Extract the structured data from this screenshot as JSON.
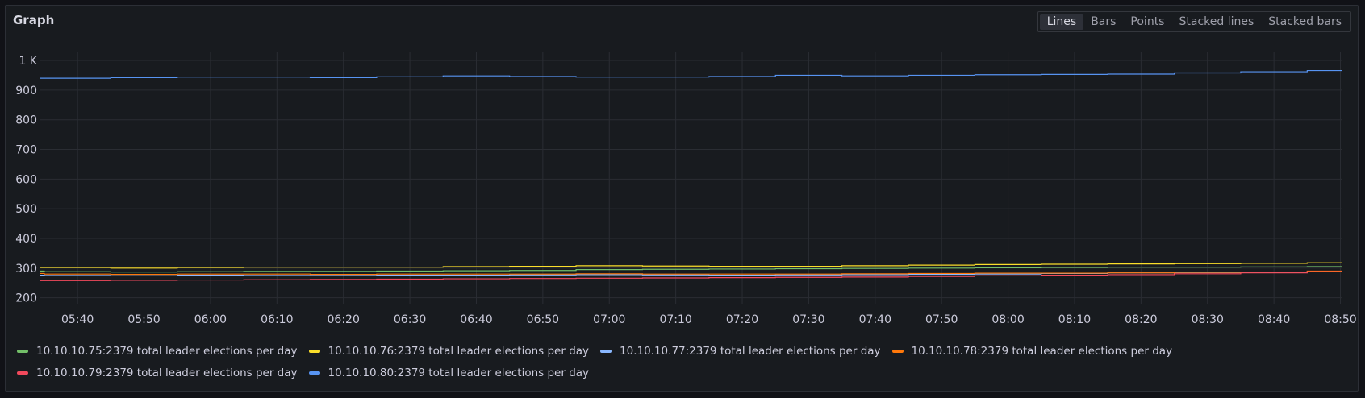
{
  "panel": {
    "title": "Graph",
    "modes": [
      "Lines",
      "Bars",
      "Points",
      "Stacked lines",
      "Stacked bars"
    ],
    "active_mode": "Lines"
  },
  "chart_data": {
    "type": "line",
    "title": "Graph",
    "xlabel": "",
    "ylabel": "",
    "x_ticks": [
      "05:40",
      "05:50",
      "06:00",
      "06:10",
      "06:20",
      "06:30",
      "06:40",
      "06:50",
      "07:00",
      "07:10",
      "07:20",
      "07:30",
      "07:40",
      "07:50",
      "08:00",
      "08:10",
      "08:20",
      "08:30",
      "08:40",
      "08:50"
    ],
    "y_ticks": [
      "200",
      "300",
      "400",
      "500",
      "600",
      "700",
      "800",
      "900",
      "1 K"
    ],
    "ylim": [
      180,
      1030
    ],
    "grid": true,
    "legend_position": "bottom",
    "x": [
      "05:35",
      "05:45",
      "05:55",
      "06:05",
      "06:15",
      "06:25",
      "06:35",
      "06:45",
      "06:55",
      "07:05",
      "07:15",
      "07:25",
      "07:35",
      "07:45",
      "07:55",
      "08:05",
      "08:15",
      "08:25",
      "08:35",
      "08:45",
      "08:50"
    ],
    "series": [
      {
        "name": "10.10.10.75:2379 total leader elections per day",
        "color": "#73bf69",
        "values": [
          290,
          288,
          287,
          288,
          289,
          289,
          290,
          291,
          292,
          295,
          296,
          297,
          298,
          299,
          300,
          301,
          302,
          303,
          303,
          304,
          305
        ]
      },
      {
        "name": "10.10.10.76:2379 total leader elections per day",
        "color": "#fade2a",
        "values": [
          302,
          302,
          300,
          302,
          303,
          303,
          303,
          305,
          306,
          308,
          307,
          306,
          306,
          308,
          310,
          312,
          313,
          314,
          315,
          316,
          318
        ]
      },
      {
        "name": "10.10.10.77:2379 total leader elections per day",
        "color": "#8ab8ff",
        "values": [
          276,
          275,
          274,
          276,
          275,
          275,
          276,
          276,
          277,
          278,
          277,
          276,
          277,
          278,
          279,
          280,
          282,
          284,
          285,
          286,
          288
        ]
      },
      {
        "name": "10.10.10.78:2379 total leader elections per day",
        "color": "#ff780a",
        "values": [
          282,
          280,
          279,
          280,
          280,
          279,
          280,
          280,
          280,
          281,
          280,
          280,
          280,
          281,
          282,
          283,
          283,
          284,
          286,
          287,
          290
        ]
      },
      {
        "name": "10.10.10.79:2379 total leader elections per day",
        "color": "#f2495c",
        "values": [
          258,
          258,
          259,
          260,
          261,
          262,
          263,
          264,
          265,
          266,
          267,
          268,
          269,
          270,
          272,
          274,
          276,
          278,
          281,
          284,
          288
        ]
      },
      {
        "name": "10.10.10.80:2379 total leader elections per day",
        "color": "#5794f2",
        "values": [
          940,
          940,
          942,
          944,
          944,
          942,
          945,
          948,
          946,
          944,
          944,
          946,
          950,
          948,
          950,
          952,
          953,
          954,
          958,
          962,
          966
        ]
      }
    ]
  }
}
